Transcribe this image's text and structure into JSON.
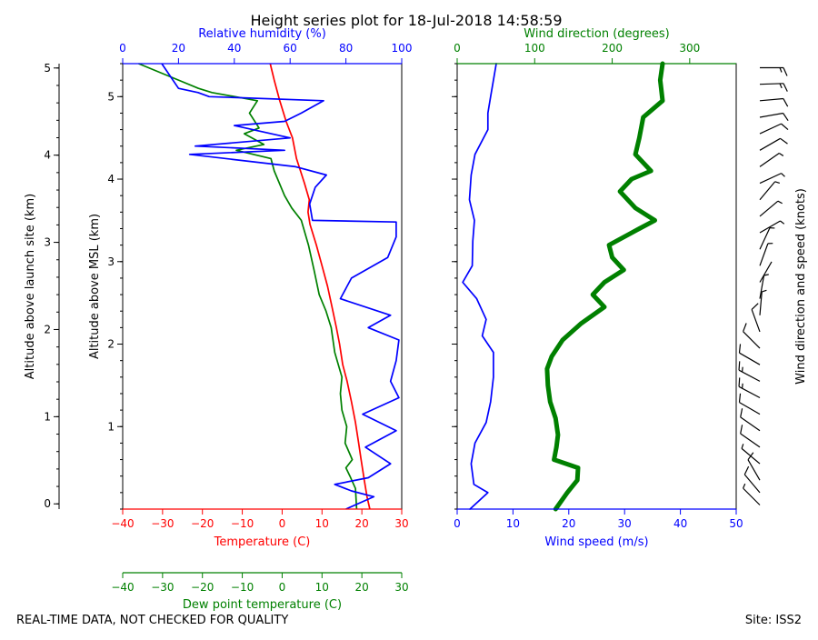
{
  "chart_data": {
    "type": "line",
    "title": "Height series plot for 18-Jul-2018 14:58:59",
    "footer": {
      "quality_note": "REAL-TIME DATA, NOT CHECKED FOR QUALITY",
      "site": "Site: ISS2"
    },
    "colors": {
      "temperature": "#ff0000",
      "dewpoint": "#008000",
      "humidity": "#0000ff",
      "wind_speed": "#0000ff",
      "wind_direction": "#008000",
      "barbs": "#000000"
    },
    "left_axes": {
      "agl_label": "Altitude above launch site (km)",
      "agl_ticks": [
        0,
        1,
        2,
        3,
        4,
        5
      ],
      "agl_ylim": [
        -0.06,
        5.05
      ],
      "msl_label": "Altitude above MSL (km)",
      "msl_ticks": [
        1,
        2,
        3,
        4,
        5
      ],
      "msl_ylim": [
        0,
        5.4
      ]
    },
    "thermo_panel": {
      "temp_label": "Temperature (C)",
      "temp_xlim": [
        -40,
        30
      ],
      "temp_ticks": [
        "−40",
        "−30",
        "−20",
        "−10",
        "0",
        "10",
        "20",
        "30"
      ],
      "dew_label": "Dew point temperature (C)",
      "dew_ticks": [
        "−40",
        "−30",
        "−20",
        "−10",
        "0",
        "10",
        "20",
        "30"
      ],
      "rh_label": "Relative humidity (%)",
      "rh_xlim": [
        0,
        100
      ],
      "rh_ticks": [
        "0",
        "20",
        "40",
        "60",
        "80",
        "100"
      ],
      "series": [
        {
          "name": "Temperature",
          "axis": "temp",
          "points": [
            [
              22,
              0
            ],
            [
              21.3,
              0.15
            ],
            [
              20.6,
              0.35
            ],
            [
              19.8,
              0.6
            ],
            [
              19.2,
              0.8
            ],
            [
              18.4,
              1.05
            ],
            [
              17.4,
              1.3
            ],
            [
              16.3,
              1.55
            ],
            [
              15.2,
              1.75
            ],
            [
              14.4,
              2
            ],
            [
              13.6,
              2.2
            ],
            [
              12.5,
              2.45
            ],
            [
              11.4,
              2.7
            ],
            [
              10,
              2.95
            ],
            [
              8.6,
              3.2
            ],
            [
              7,
              3.45
            ],
            [
              6.5,
              3.6
            ],
            [
              6.8,
              3.75
            ],
            [
              5.6,
              3.95
            ],
            [
              3.6,
              4.25
            ],
            [
              2.6,
              4.5
            ],
            [
              1,
              4.7
            ],
            [
              -0.6,
              4.95
            ],
            [
              -2,
              5.2
            ],
            [
              -3,
              5.4
            ]
          ]
        },
        {
          "name": "Dew point",
          "axis": "temp",
          "points": [
            [
              18.7,
              0
            ],
            [
              18.4,
              0.25
            ],
            [
              17,
              0.4
            ],
            [
              16,
              0.5
            ],
            [
              17.6,
              0.6
            ],
            [
              15.8,
              0.8
            ],
            [
              16.2,
              1
            ],
            [
              15,
              1.2
            ],
            [
              14.6,
              1.4
            ],
            [
              15,
              1.6
            ],
            [
              13.2,
              1.9
            ],
            [
              12.3,
              2.2
            ],
            [
              11,
              2.4
            ],
            [
              9.3,
              2.6
            ],
            [
              8,
              2.9
            ],
            [
              6.6,
              3.2
            ],
            [
              4.8,
              3.5
            ],
            [
              2.4,
              3.65
            ],
            [
              0.6,
              3.8
            ],
            [
              -2,
              4.1
            ],
            [
              -2.8,
              4.25
            ],
            [
              -11.5,
              4.35
            ],
            [
              -4.6,
              4.42
            ],
            [
              -9.5,
              4.55
            ],
            [
              -5.8,
              4.62
            ],
            [
              -8.2,
              4.8
            ],
            [
              -6.2,
              4.95
            ],
            [
              -17.6,
              5.05
            ],
            [
              -21,
              5.1
            ],
            [
              -26,
              5.2
            ],
            [
              -36,
              5.4
            ]
          ]
        },
        {
          "name": "Relative humidity",
          "axis": "rh",
          "points": [
            [
              80,
              0
            ],
            [
              90,
              0.15
            ],
            [
              82,
              0.22
            ],
            [
              76,
              0.3
            ],
            [
              88,
              0.38
            ],
            [
              96,
              0.55
            ],
            [
              87,
              0.75
            ],
            [
              98,
              0.95
            ],
            [
              86,
              1.15
            ],
            [
              99,
              1.35
            ],
            [
              96,
              1.55
            ],
            [
              98,
              1.8
            ],
            [
              99,
              2.05
            ],
            [
              88,
              2.2
            ],
            [
              96,
              2.35
            ],
            [
              78,
              2.55
            ],
            [
              82,
              2.8
            ],
            [
              95,
              3.05
            ],
            [
              98,
              3.3
            ],
            [
              98,
              3.48
            ],
            [
              68,
              3.5
            ],
            [
              67,
              3.7
            ],
            [
              69,
              3.9
            ],
            [
              73,
              4.05
            ],
            [
              62,
              4.15
            ],
            [
              24,
              4.3
            ],
            [
              58,
              4.35
            ],
            [
              26,
              4.4
            ],
            [
              60,
              4.5
            ],
            [
              40,
              4.65
            ],
            [
              58,
              4.7
            ],
            [
              64,
              4.8
            ],
            [
              72,
              4.95
            ],
            [
              31,
              5
            ],
            [
              27,
              5.05
            ],
            [
              20,
              5.1
            ],
            [
              17,
              5.25
            ],
            [
              14,
              5.4
            ]
          ]
        }
      ]
    },
    "wind_panel": {
      "speed_label": "Wind speed (m/s)",
      "speed_xlim": [
        0,
        50
      ],
      "speed_ticks": [
        "0",
        "10",
        "20",
        "30",
        "40",
        "50"
      ],
      "dir_label": "Wind direction (degrees)",
      "dir_xlim": [
        0,
        360
      ],
      "dir_ticks": [
        "0",
        "100",
        "200",
        "300"
      ],
      "series": [
        {
          "name": "Wind speed",
          "axis": "speed",
          "points": [
            [
              2.3,
              0
            ],
            [
              5.5,
              0.2
            ],
            [
              3,
              0.3
            ],
            [
              2.5,
              0.55
            ],
            [
              3.2,
              0.8
            ],
            [
              5.2,
              1.05
            ],
            [
              6,
              1.3
            ],
            [
              6.5,
              1.6
            ],
            [
              6.5,
              1.9
            ],
            [
              4.5,
              2.1
            ],
            [
              5.2,
              2.3
            ],
            [
              3.5,
              2.55
            ],
            [
              1,
              2.75
            ],
            [
              2.7,
              2.95
            ],
            [
              2.8,
              3.25
            ],
            [
              3.1,
              3.5
            ],
            [
              2.2,
              3.75
            ],
            [
              2.5,
              4.05
            ],
            [
              3.2,
              4.3
            ],
            [
              5.5,
              4.6
            ],
            [
              5.5,
              4.8
            ],
            [
              6,
              5
            ],
            [
              7,
              5.4
            ]
          ]
        },
        {
          "name": "Wind direction",
          "axis": "dir",
          "points": [
            [
              127,
              0
            ],
            [
              142,
              0.2
            ],
            [
              155,
              0.35
            ],
            [
              156,
              0.5
            ],
            [
              125,
              0.6
            ],
            [
              128,
              0.75
            ],
            [
              130,
              0.9
            ],
            [
              127,
              1.1
            ],
            [
              120,
              1.3
            ],
            [
              117,
              1.5
            ],
            [
              116,
              1.7
            ],
            [
              122,
              1.85
            ],
            [
              136,
              2.05
            ],
            [
              160,
              2.25
            ],
            [
              190,
              2.45
            ],
            [
              175,
              2.6
            ],
            [
              190,
              2.75
            ],
            [
              215,
              2.9
            ],
            [
              200,
              3.05
            ],
            [
              196,
              3.2
            ],
            [
              235,
              3.4
            ],
            [
              255,
              3.5
            ],
            [
              230,
              3.65
            ],
            [
              210,
              3.85
            ],
            [
              225,
              4
            ],
            [
              250,
              4.1
            ],
            [
              230,
              4.3
            ],
            [
              235,
              4.5
            ],
            [
              240,
              4.75
            ],
            [
              265,
              4.95
            ],
            [
              262,
              5.2
            ],
            [
              265,
              5.4
            ]
          ]
        }
      ]
    },
    "barbs": {
      "label": "Wind direction and speed (knots)",
      "levels": [
        [
          0.05,
          5,
          135
        ],
        [
          0.2,
          8,
          140
        ],
        [
          0.35,
          10,
          150
        ],
        [
          0.55,
          6,
          130
        ],
        [
          0.75,
          10,
          125
        ],
        [
          0.95,
          12,
          125
        ],
        [
          1.15,
          12,
          120
        ],
        [
          1.35,
          13,
          118
        ],
        [
          1.55,
          13,
          118
        ],
        [
          1.75,
          12,
          120
        ],
        [
          1.95,
          10,
          135
        ],
        [
          2.15,
          10,
          160
        ],
        [
          2.35,
          6,
          185
        ],
        [
          2.55,
          4,
          190
        ],
        [
          2.75,
          2,
          210
        ],
        [
          2.95,
          5,
          200
        ],
        [
          3.15,
          6,
          205
        ],
        [
          3.35,
          6,
          240
        ],
        [
          3.55,
          4,
          230
        ],
        [
          3.75,
          4,
          220
        ],
        [
          3.95,
          5,
          245
        ],
        [
          4.15,
          6,
          235
        ],
        [
          4.35,
          10,
          240
        ],
        [
          4.55,
          11,
          245
        ],
        [
          4.75,
          11,
          260
        ],
        [
          4.95,
          12,
          265
        ],
        [
          5.15,
          13,
          268
        ],
        [
          5.35,
          14,
          270
        ]
      ]
    }
  }
}
